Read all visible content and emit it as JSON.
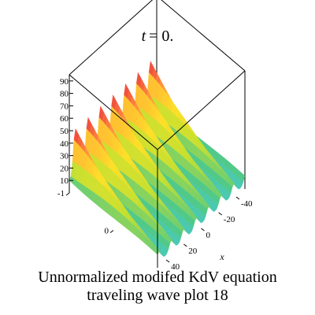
{
  "chart_data": {
    "type": "surface",
    "title": "t = 0.",
    "title_var": "t",
    "title_value": "= 0.",
    "xlabel": "x",
    "ylabel": "",
    "zlabel": "",
    "x_ticks": [
      "-40",
      "-20",
      "0",
      "20",
      "40"
    ],
    "y_ticks": [
      "-1",
      "0"
    ],
    "z_ticks": [
      "10",
      "20",
      "30",
      "40",
      "50",
      "60",
      "70",
      "80",
      "90"
    ],
    "xlim": [
      -50,
      50
    ],
    "ylim": [
      -1,
      1
    ],
    "zlim": [
      0,
      95
    ],
    "colormap": [
      "#3fc9e6",
      "#52c985",
      "#c8e030",
      "#ffe028",
      "#ff9040",
      "#e8283c"
    ],
    "description_counts": {
      "ridges": 7
    }
  },
  "caption": {
    "line1": "Unnormalized modifed KdV equation",
    "line2": "traveling wave plot 18"
  }
}
